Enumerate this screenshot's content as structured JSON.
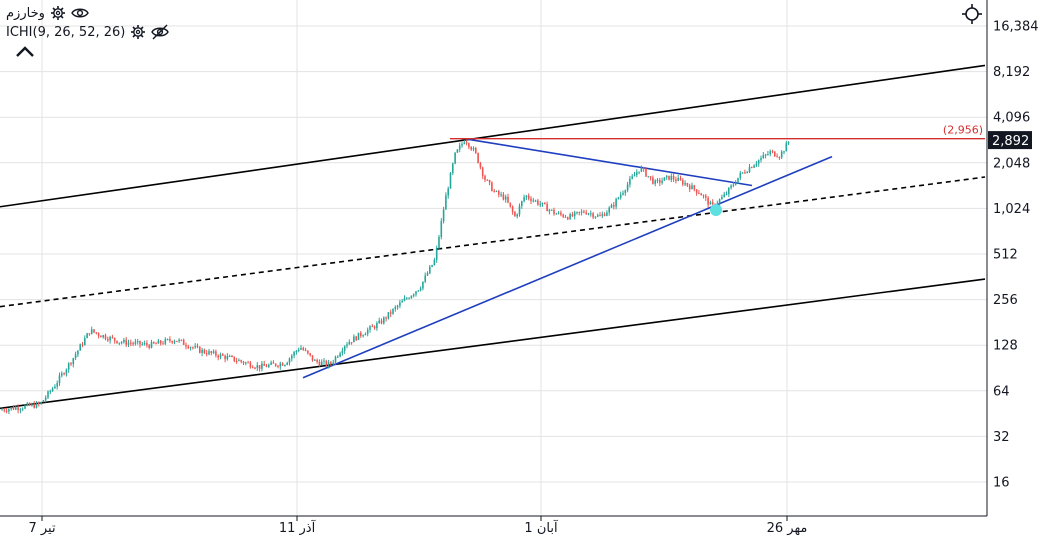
{
  "header": {
    "symbol": "وخارزم",
    "indicator": "ICHI(9, 26, 52, 26)",
    "icons": [
      "gear-icon",
      "eye-icon",
      "gear-icon",
      "eye-off-icon",
      "chevron-up-icon",
      "crosshair-icon"
    ]
  },
  "price_axis": {
    "labels": [
      "16,384",
      "8,192",
      "4,096",
      "2,048",
      "1,024",
      "512",
      "256",
      "128",
      "64",
      "32",
      "16"
    ],
    "scale": "log2"
  },
  "time_axis": {
    "labels": [
      "7 تیر",
      "11 آذر",
      "1 آبان",
      "26 مهر"
    ]
  },
  "current_price": {
    "label": "2,892",
    "value": 2892,
    "bg": "#131722"
  },
  "resistance": {
    "label": "(2,956)",
    "value": 2956,
    "color": "#d32f2f"
  },
  "colors": {
    "up": "#26a69a",
    "down": "#ef5350",
    "channel": "#000000",
    "trend": "#1f3fbf",
    "marker": "#5ee0e0",
    "grid": "#e3e3e3"
  },
  "chart_data": {
    "type": "line",
    "scale": "log",
    "ylim": [
      11,
      20000
    ],
    "x_range": [
      0,
      1000
    ],
    "title": "",
    "xlabel": "",
    "ylabel": "",
    "grid": true,
    "price_series": [
      [
        0,
        48
      ],
      [
        40,
        52
      ],
      [
        55,
        70
      ],
      [
        75,
        110
      ],
      [
        90,
        160
      ],
      [
        100,
        150
      ],
      [
        120,
        135
      ],
      [
        150,
        128
      ],
      [
        175,
        140
      ],
      [
        200,
        118
      ],
      [
        230,
        105
      ],
      [
        260,
        92
      ],
      [
        285,
        98
      ],
      [
        300,
        125
      ],
      [
        315,
        100
      ],
      [
        330,
        95
      ],
      [
        345,
        130
      ],
      [
        360,
        150
      ],
      [
        380,
        180
      ],
      [
        400,
        240
      ],
      [
        420,
        310
      ],
      [
        435,
        470
      ],
      [
        445,
        1150
      ],
      [
        455,
        2300
      ],
      [
        465,
        2950
      ],
      [
        475,
        2400
      ],
      [
        485,
        1600
      ],
      [
        495,
        1300
      ],
      [
        505,
        1200
      ],
      [
        515,
        900
      ],
      [
        525,
        1250
      ],
      [
        540,
        1100
      ],
      [
        555,
        950
      ],
      [
        570,
        900
      ],
      [
        585,
        980
      ],
      [
        600,
        900
      ],
      [
        612,
        1050
      ],
      [
        625,
        1400
      ],
      [
        640,
        1900
      ],
      [
        655,
        1500
      ],
      [
        670,
        1650
      ],
      [
        685,
        1500
      ],
      [
        700,
        1300
      ],
      [
        712,
        1050
      ],
      [
        725,
        1250
      ],
      [
        740,
        1700
      ],
      [
        755,
        2050
      ],
      [
        770,
        2400
      ],
      [
        780,
        2300
      ],
      [
        790,
        2892
      ]
    ],
    "channel_lines": [
      {
        "name": "upper",
        "style": "solid",
        "x": [
          0,
          985
        ],
        "y": [
          1050,
          9000
        ]
      },
      {
        "name": "middle",
        "style": "dashed",
        "x": [
          0,
          985
        ],
        "y": [
          230,
          1650
        ]
      },
      {
        "name": "lower",
        "style": "solid",
        "x": [
          0,
          985
        ],
        "y": [
          49,
          350
        ]
      }
    ],
    "trend_lines": [
      {
        "name": "rising-support",
        "x": [
          303,
          832
        ],
        "y": [
          78,
          2250
        ]
      },
      {
        "name": "descending-resistance",
        "x": [
          465,
          752
        ],
        "y": [
          2950,
          1450
        ]
      }
    ],
    "horizontal_level": {
      "value": 2956,
      "x": [
        450,
        985
      ]
    },
    "marker": {
      "x": 716,
      "y": 1000
    }
  }
}
